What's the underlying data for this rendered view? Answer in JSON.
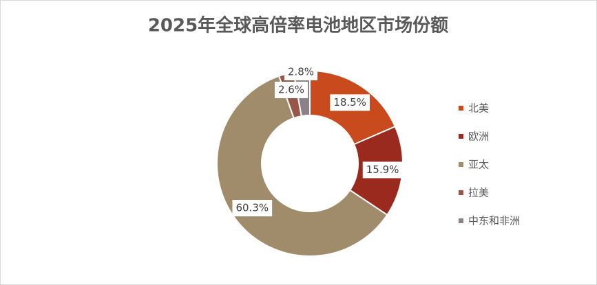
{
  "chart_data": {
    "type": "donut",
    "title": "2025年全球高倍率电池地区市场份额",
    "categories": [
      "北美",
      "欧洲",
      "亚太",
      "拉美",
      "中东和非洲"
    ],
    "values": [
      18.5,
      15.9,
      60.3,
      2.6,
      2.8
    ],
    "value_labels": [
      "18.5%",
      "15.9%",
      "60.3%",
      "2.6%",
      "2.8%"
    ],
    "colors": [
      "#c94a1c",
      "#9a2a1e",
      "#a08b6b",
      "#985646",
      "#8c8189"
    ],
    "legend": "right"
  }
}
